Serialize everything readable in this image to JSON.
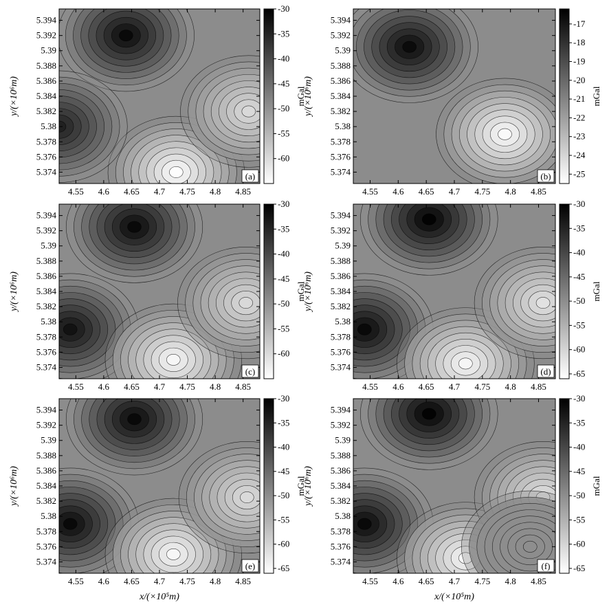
{
  "chart_data": [
    {
      "panel": "a",
      "type": "heatmap",
      "panel_label": "(a)",
      "x_ticks": [
        "4.55",
        "4.6",
        "4.65",
        "4.7",
        "4.75",
        "4.8",
        "4.85"
      ],
      "y_ticks": [
        "5.394",
        "5.392",
        "5.39",
        "5.388",
        "5.386",
        "5.384",
        "5.382",
        "5.38",
        "5.378",
        "5.376",
        "5.374"
      ],
      "x_tick_values": [
        4.55,
        4.6,
        4.65,
        4.7,
        4.75,
        4.8,
        4.85
      ],
      "y_tick_values": [
        5.394,
        5.392,
        5.39,
        5.388,
        5.386,
        5.384,
        5.382,
        5.38,
        5.378,
        5.376,
        5.374
      ],
      "xlim": [
        4.52,
        4.88
      ],
      "ylim": [
        5.3725,
        5.3955
      ],
      "xlabel": "",
      "ylabel": "y/(×10⁶m)",
      "colorbar": {
        "label": "mGal",
        "range": [
          -65,
          -30
        ],
        "ticks": [
          "-30",
          "-35",
          "-40",
          "-45",
          "-50",
          "-55",
          "-60"
        ],
        "tick_values": [
          -30,
          -35,
          -40,
          -45,
          -50,
          -55,
          -60
        ]
      },
      "extrema": [
        {
          "x": 4.64,
          "y": 5.392,
          "value": -31
        },
        {
          "x": 4.52,
          "y": 5.38,
          "value": -34
        },
        {
          "x": 4.73,
          "y": 5.374,
          "value": -65
        },
        {
          "x": 4.86,
          "y": 5.382,
          "value": -60
        }
      ]
    },
    {
      "panel": "b",
      "type": "heatmap",
      "panel_label": "(b)",
      "x_ticks": [
        "4.55",
        "4.6",
        "4.65",
        "4.7",
        "4.75",
        "4.8",
        "4.85"
      ],
      "y_ticks": [
        "5.394",
        "5.392",
        "5.39",
        "5.388",
        "5.386",
        "5.384",
        "5.382",
        "5.38",
        "5.378",
        "5.376",
        "5.374"
      ],
      "x_tick_values": [
        4.55,
        4.6,
        4.65,
        4.7,
        4.75,
        4.8,
        4.85
      ],
      "y_tick_values": [
        5.394,
        5.392,
        5.39,
        5.388,
        5.386,
        5.384,
        5.382,
        5.38,
        5.378,
        5.376,
        5.374
      ],
      "xlim": [
        4.52,
        4.88
      ],
      "ylim": [
        5.3725,
        5.3955
      ],
      "xlabel": "",
      "ylabel": "y/(×10⁶m)",
      "colorbar": {
        "label": "mGal",
        "range": [
          -25.5,
          -16.2
        ],
        "ticks": [
          "-17",
          "-18",
          "-19",
          "-20",
          "-21",
          "-22",
          "-23",
          "-24",
          "-25"
        ],
        "tick_values": [
          -17,
          -18,
          -19,
          -20,
          -21,
          -22,
          -23,
          -24,
          -25
        ]
      },
      "extrema": [
        {
          "x": 4.62,
          "y": 5.3905,
          "value": -16.5
        },
        {
          "x": 4.79,
          "y": 5.379,
          "value": -25.4
        }
      ]
    },
    {
      "panel": "c",
      "type": "heatmap",
      "panel_label": "(c)",
      "x_ticks": [
        "4.55",
        "4.6",
        "4.65",
        "4.7",
        "4.75",
        "4.8",
        "4.85"
      ],
      "y_ticks": [
        "5.394",
        "5.392",
        "5.39",
        "5.388",
        "5.386",
        "5.384",
        "5.382",
        "5.38",
        "5.378",
        "5.376",
        "5.374"
      ],
      "x_tick_values": [
        4.55,
        4.6,
        4.65,
        4.7,
        4.75,
        4.8,
        4.85
      ],
      "y_tick_values": [
        5.394,
        5.392,
        5.39,
        5.388,
        5.386,
        5.384,
        5.382,
        5.38,
        5.378,
        5.376,
        5.374
      ],
      "xlim": [
        4.52,
        4.88
      ],
      "ylim": [
        5.3725,
        5.3955
      ],
      "xlabel": "",
      "ylabel": "y/(×10⁶m)",
      "colorbar": {
        "label": "mGal",
        "range": [
          -65,
          -30
        ],
        "ticks": [
          "-30",
          "-35",
          "-40",
          "-45",
          "-50",
          "-55",
          "-60"
        ],
        "tick_values": [
          -30,
          -35,
          -40,
          -45,
          -50,
          -55,
          -60
        ]
      },
      "extrema": [
        {
          "x": 4.655,
          "y": 5.3925,
          "value": -31
        },
        {
          "x": 4.54,
          "y": 5.379,
          "value": -32
        },
        {
          "x": 4.725,
          "y": 5.375,
          "value": -64
        },
        {
          "x": 4.855,
          "y": 5.3825,
          "value": -60
        }
      ]
    },
    {
      "panel": "d",
      "type": "heatmap",
      "panel_label": "(d)",
      "x_ticks": [
        "4.55",
        "4.6",
        "4.65",
        "4.7",
        "4.75",
        "4.8",
        "4.85"
      ],
      "y_ticks": [
        "5.394",
        "5.392",
        "5.39",
        "5.388",
        "5.386",
        "5.384",
        "5.382",
        "5.38",
        "5.378",
        "5.376",
        "5.374"
      ],
      "x_tick_values": [
        4.55,
        4.6,
        4.65,
        4.7,
        4.75,
        4.8,
        4.85
      ],
      "y_tick_values": [
        5.394,
        5.392,
        5.39,
        5.388,
        5.386,
        5.384,
        5.382,
        5.38,
        5.378,
        5.376,
        5.374
      ],
      "xlim": [
        4.52,
        4.88
      ],
      "ylim": [
        5.3725,
        5.3955
      ],
      "xlabel": "",
      "ylabel": "y/(×10⁶m)",
      "colorbar": {
        "label": "mGal",
        "range": [
          -66,
          -30
        ],
        "ticks": [
          "-30",
          "-35",
          "-40",
          "-45",
          "-50",
          "-55",
          "-60",
          "-65"
        ],
        "tick_values": [
          -30,
          -35,
          -40,
          -45,
          -50,
          -55,
          -60,
          -65
        ]
      },
      "extrema": [
        {
          "x": 4.655,
          "y": 5.3935,
          "value": -30
        },
        {
          "x": 4.54,
          "y": 5.379,
          "value": -31
        },
        {
          "x": 4.72,
          "y": 5.3745,
          "value": -65
        },
        {
          "x": 4.858,
          "y": 5.3825,
          "value": -62
        }
      ]
    },
    {
      "panel": "e",
      "type": "heatmap",
      "panel_label": "(e)",
      "x_ticks": [
        "4.55",
        "4.6",
        "4.65",
        "4.7",
        "4.75",
        "4.8",
        "4.85"
      ],
      "y_ticks": [
        "5.394",
        "5.392",
        "5.39",
        "5.388",
        "5.386",
        "5.384",
        "5.382",
        "5.38",
        "5.378",
        "5.376",
        "5.374"
      ],
      "x_tick_values": [
        4.55,
        4.6,
        4.65,
        4.7,
        4.75,
        4.8,
        4.85
      ],
      "y_tick_values": [
        5.394,
        5.392,
        5.39,
        5.388,
        5.386,
        5.384,
        5.382,
        5.38,
        5.378,
        5.376,
        5.374
      ],
      "xlim": [
        4.52,
        4.88
      ],
      "ylim": [
        5.3725,
        5.3955
      ],
      "xlabel": "x/(×10⁵m)",
      "ylabel": "y/(×10⁶m)",
      "colorbar": {
        "label": "mGal",
        "range": [
          -66,
          -30
        ],
        "ticks": [
          "-30",
          "-35",
          "-40",
          "-45",
          "-50",
          "-55",
          "-60",
          "-65"
        ],
        "tick_values": [
          -30,
          -35,
          -40,
          -45,
          -50,
          -55,
          -60,
          -65
        ]
      },
      "extrema": [
        {
          "x": 4.655,
          "y": 5.3928,
          "value": -31
        },
        {
          "x": 4.54,
          "y": 5.379,
          "value": -31
        },
        {
          "x": 4.725,
          "y": 5.375,
          "value": -65
        },
        {
          "x": 4.857,
          "y": 5.3825,
          "value": -61
        }
      ]
    },
    {
      "panel": "f",
      "type": "heatmap",
      "panel_label": "(f)",
      "x_ticks": [
        "4.55",
        "4.6",
        "4.65",
        "4.7",
        "4.75",
        "4.8",
        "4.85"
      ],
      "y_ticks": [
        "5.394",
        "5.392",
        "5.39",
        "5.388",
        "5.386",
        "5.384",
        "5.382",
        "5.38",
        "5.378",
        "5.376",
        "5.374"
      ],
      "x_tick_values": [
        4.55,
        4.6,
        4.65,
        4.7,
        4.75,
        4.8,
        4.85
      ],
      "y_tick_values": [
        5.394,
        5.392,
        5.39,
        5.388,
        5.386,
        5.384,
        5.382,
        5.38,
        5.378,
        5.376,
        5.374
      ],
      "xlim": [
        4.52,
        4.88
      ],
      "ylim": [
        5.3725,
        5.3955
      ],
      "xlabel": "x/(×10⁵m)",
      "ylabel": "y/(×10⁶m)",
      "colorbar": {
        "label": "mGal",
        "range": [
          -66,
          -30
        ],
        "ticks": [
          "-30",
          "-35",
          "-40",
          "-45",
          "-50",
          "-55",
          "-60",
          "-65"
        ],
        "tick_values": [
          -30,
          -35,
          -40,
          -45,
          -50,
          -55,
          -60,
          -65
        ]
      },
      "extrema": [
        {
          "x": 4.655,
          "y": 5.3935,
          "value": -30
        },
        {
          "x": 4.54,
          "y": 5.379,
          "value": -31
        },
        {
          "x": 4.72,
          "y": 5.3745,
          "value": -65
        },
        {
          "x": 4.858,
          "y": 5.3825,
          "value": -62
        },
        {
          "x": 4.835,
          "y": 5.376,
          "value": -50
        }
      ]
    }
  ]
}
